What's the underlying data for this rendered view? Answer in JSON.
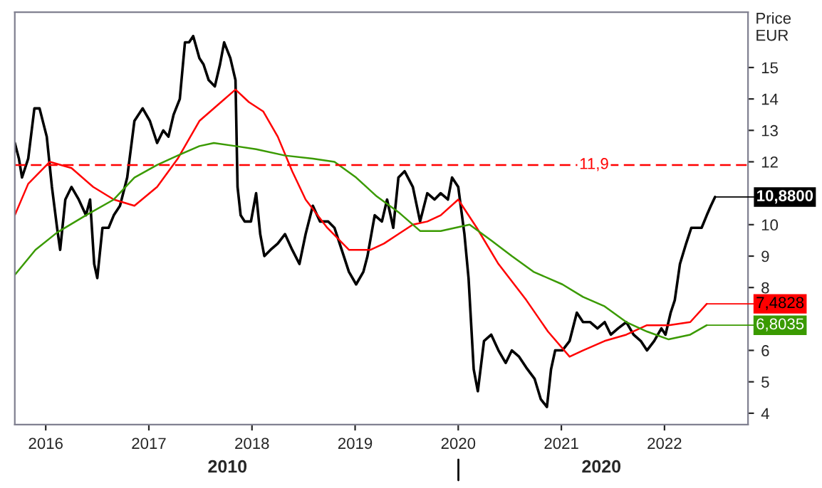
{
  "chart_data": {
    "type": "line",
    "ylabel": "Price\nEUR",
    "xlim": [
      2015.7,
      2022.81
    ],
    "xticks": [
      2016,
      2017,
      2018,
      2019,
      2020,
      2021,
      2022
    ],
    "annotations": [
      "2010",
      "2020"
    ],
    "ylim": [
      3.64,
      16.76
    ],
    "yticks": [
      4,
      5,
      6,
      8,
      9,
      10,
      12,
      13,
      14,
      15
    ],
    "ref_lines": [
      {
        "axis": "y",
        "value": 11.9,
        "label": "11,9",
        "color": "#ff0000",
        "line_style": "dashed"
      }
    ],
    "grid": false,
    "legend": false,
    "series": [
      {
        "color": "#000000",
        "value_labels": [
          null,
          null,
          null,
          null,
          null,
          null,
          null,
          null,
          null,
          null,
          null,
          null,
          null,
          null,
          null,
          null,
          null,
          null,
          null,
          null,
          null,
          null,
          null,
          null,
          null,
          null,
          null,
          null,
          null,
          null,
          null,
          null,
          null,
          null,
          null,
          null,
          null,
          null,
          null,
          null,
          null,
          null,
          null,
          null,
          null,
          null,
          null,
          null,
          null,
          null,
          null,
          null,
          null,
          null,
          null,
          null,
          null,
          null,
          null,
          null,
          null,
          null,
          null,
          null,
          null,
          null,
          null,
          null,
          null,
          null,
          null,
          null,
          null,
          null,
          null,
          null,
          null,
          null,
          null,
          null,
          null,
          null,
          null,
          null,
          null,
          null,
          null,
          null,
          null,
          null,
          null,
          null,
          null,
          null,
          null,
          null,
          null,
          null,
          null,
          null,
          null,
          null,
          null,
          null,
          null,
          null,
          null,
          null,
          null,
          null,
          null,
          null,
          null,
          null,
          null,
          null,
          null,
          null,
          "10,8800"
        ],
        "x": [
          2015.7,
          2015.74,
          2015.77,
          2015.83,
          2015.89,
          2015.94,
          2016.01,
          2016.06,
          2016.11,
          2016.14,
          2016.19,
          2016.25,
          2016.32,
          2016.39,
          2016.43,
          2016.47,
          2016.5,
          2016.55,
          2016.61,
          2016.66,
          2016.72,
          2016.79,
          2016.86,
          2016.94,
          2017.01,
          2017.08,
          2017.14,
          2017.19,
          2017.24,
          2017.3,
          2017.35,
          2017.39,
          2017.43,
          2017.49,
          2017.53,
          2017.58,
          2017.64,
          2017.69,
          2017.73,
          2017.79,
          2017.84,
          2017.86,
          2017.89,
          2017.93,
          2017.99,
          2018.04,
          2018.08,
          2018.12,
          2018.18,
          2018.25,
          2018.32,
          2018.39,
          2018.46,
          2018.52,
          2018.59,
          2018.66,
          2018.74,
          2018.8,
          2018.87,
          2018.94,
          2019.01,
          2019.08,
          2019.12,
          2019.19,
          2019.26,
          2019.31,
          2019.37,
          2019.42,
          2019.48,
          2019.56,
          2019.63,
          2019.7,
          2019.77,
          2019.83,
          2019.9,
          2019.94,
          2020.0,
          2020.06,
          2020.1,
          2020.15,
          2020.19,
          2020.25,
          2020.32,
          2020.39,
          2020.46,
          2020.52,
          2020.59,
          2020.66,
          2020.74,
          2020.8,
          2020.86,
          2020.9,
          2020.94,
          2021.01,
          2021.08,
          2021.15,
          2021.21,
          2021.28,
          2021.35,
          2021.42,
          2021.48,
          2021.55,
          2021.63,
          2021.7,
          2021.77,
          2021.83,
          2021.9,
          2021.97,
          2022.01,
          2022.06,
          2022.1,
          2022.15,
          2022.21,
          2022.26,
          2022.32,
          2022.36,
          2022.41,
          2022.45,
          2022.49
        ],
        "values": [
          12.6,
          12.1,
          11.5,
          12.1,
          13.7,
          13.7,
          12.8,
          11.2,
          9.9,
          9.2,
          10.8,
          11.2,
          10.8,
          10.3,
          10.8,
          8.75,
          8.3,
          9.9,
          9.9,
          10.3,
          10.6,
          11.5,
          13.3,
          13.7,
          13.3,
          12.6,
          13.0,
          12.8,
          13.5,
          14.0,
          15.8,
          15.8,
          16.0,
          15.3,
          15.1,
          14.6,
          14.4,
          15.1,
          15.8,
          15.3,
          14.6,
          11.2,
          10.3,
          10.1,
          10.1,
          11.0,
          9.7,
          9.0,
          9.2,
          9.4,
          9.7,
          9.2,
          8.75,
          9.7,
          10.6,
          10.1,
          10.1,
          9.9,
          9.2,
          8.5,
          8.1,
          8.5,
          9.0,
          10.3,
          10.1,
          10.8,
          9.9,
          11.5,
          11.7,
          11.2,
          10.1,
          11.0,
          10.8,
          11.0,
          10.8,
          11.5,
          11.2,
          9.7,
          8.3,
          5.4,
          4.7,
          6.3,
          6.5,
          6.0,
          5.6,
          6.0,
          5.8,
          5.45,
          5.1,
          4.45,
          4.2,
          5.4,
          6.0,
          6.0,
          6.3,
          7.2,
          6.9,
          6.9,
          6.7,
          6.9,
          6.5,
          6.7,
          6.9,
          6.5,
          6.3,
          6.0,
          6.3,
          6.7,
          6.5,
          7.2,
          7.6,
          8.75,
          9.4,
          9.9,
          9.9,
          9.9,
          10.3,
          10.6,
          10.88
        ]
      },
      {
        "color": "#ff0000",
        "value_labels": [
          null,
          null,
          null,
          null,
          null,
          null,
          null,
          null,
          null,
          null,
          null,
          null,
          null,
          null,
          null,
          null,
          null,
          null,
          null,
          null,
          null,
          null,
          null,
          null,
          null,
          null,
          null,
          null,
          null,
          null,
          null,
          null,
          null,
          null,
          null,
          null,
          null,
          "7,4828"
        ],
        "x": [
          2015.7,
          2015.83,
          2016.04,
          2016.25,
          2016.46,
          2016.66,
          2016.86,
          2017.08,
          2017.28,
          2017.49,
          2017.7,
          2017.84,
          2017.97,
          2018.11,
          2018.25,
          2018.39,
          2018.52,
          2018.73,
          2018.94,
          2019.15,
          2019.28,
          2019.42,
          2019.56,
          2019.7,
          2019.83,
          2020.0,
          2020.18,
          2020.39,
          2020.66,
          2020.87,
          2021.08,
          2021.21,
          2021.42,
          2021.63,
          2021.83,
          2022.04,
          2022.25,
          2022.41
        ],
        "values": [
          10.3,
          11.3,
          12.0,
          11.8,
          11.2,
          10.8,
          10.6,
          11.2,
          12.1,
          13.3,
          13.9,
          14.3,
          13.9,
          13.6,
          12.8,
          11.7,
          10.8,
          9.9,
          9.2,
          9.2,
          9.4,
          9.7,
          10.0,
          10.1,
          10.3,
          10.8,
          9.9,
          8.75,
          7.6,
          6.6,
          5.8,
          6.0,
          6.3,
          6.5,
          6.8,
          6.8,
          6.9,
          7.48
        ]
      },
      {
        "color": "#3a9a00",
        "value_labels": [
          null,
          null,
          null,
          null,
          null,
          null,
          null,
          null,
          null,
          null,
          null,
          null,
          null,
          null,
          null,
          null,
          null,
          null,
          null,
          null,
          null,
          null,
          null,
          null,
          null,
          null,
          null,
          null,
          null,
          null,
          null,
          "6,8035"
        ],
        "x": [
          2015.7,
          2015.9,
          2016.11,
          2016.39,
          2016.66,
          2016.86,
          2017.08,
          2017.28,
          2017.49,
          2017.63,
          2017.84,
          2018.04,
          2018.32,
          2018.59,
          2018.8,
          2019.01,
          2019.21,
          2019.42,
          2019.63,
          2019.83,
          2020.11,
          2020.32,
          2020.52,
          2020.73,
          2021.01,
          2021.21,
          2021.42,
          2021.63,
          2021.83,
          2022.04,
          2022.25,
          2022.41
        ],
        "values": [
          8.4,
          9.2,
          9.75,
          10.3,
          10.8,
          11.5,
          11.9,
          12.2,
          12.5,
          12.6,
          12.5,
          12.4,
          12.2,
          12.1,
          12.0,
          11.5,
          10.9,
          10.4,
          9.8,
          9.8,
          10.0,
          9.5,
          9.0,
          8.5,
          8.1,
          7.7,
          7.4,
          6.9,
          6.6,
          6.35,
          6.5,
          6.8
        ]
      }
    ]
  }
}
